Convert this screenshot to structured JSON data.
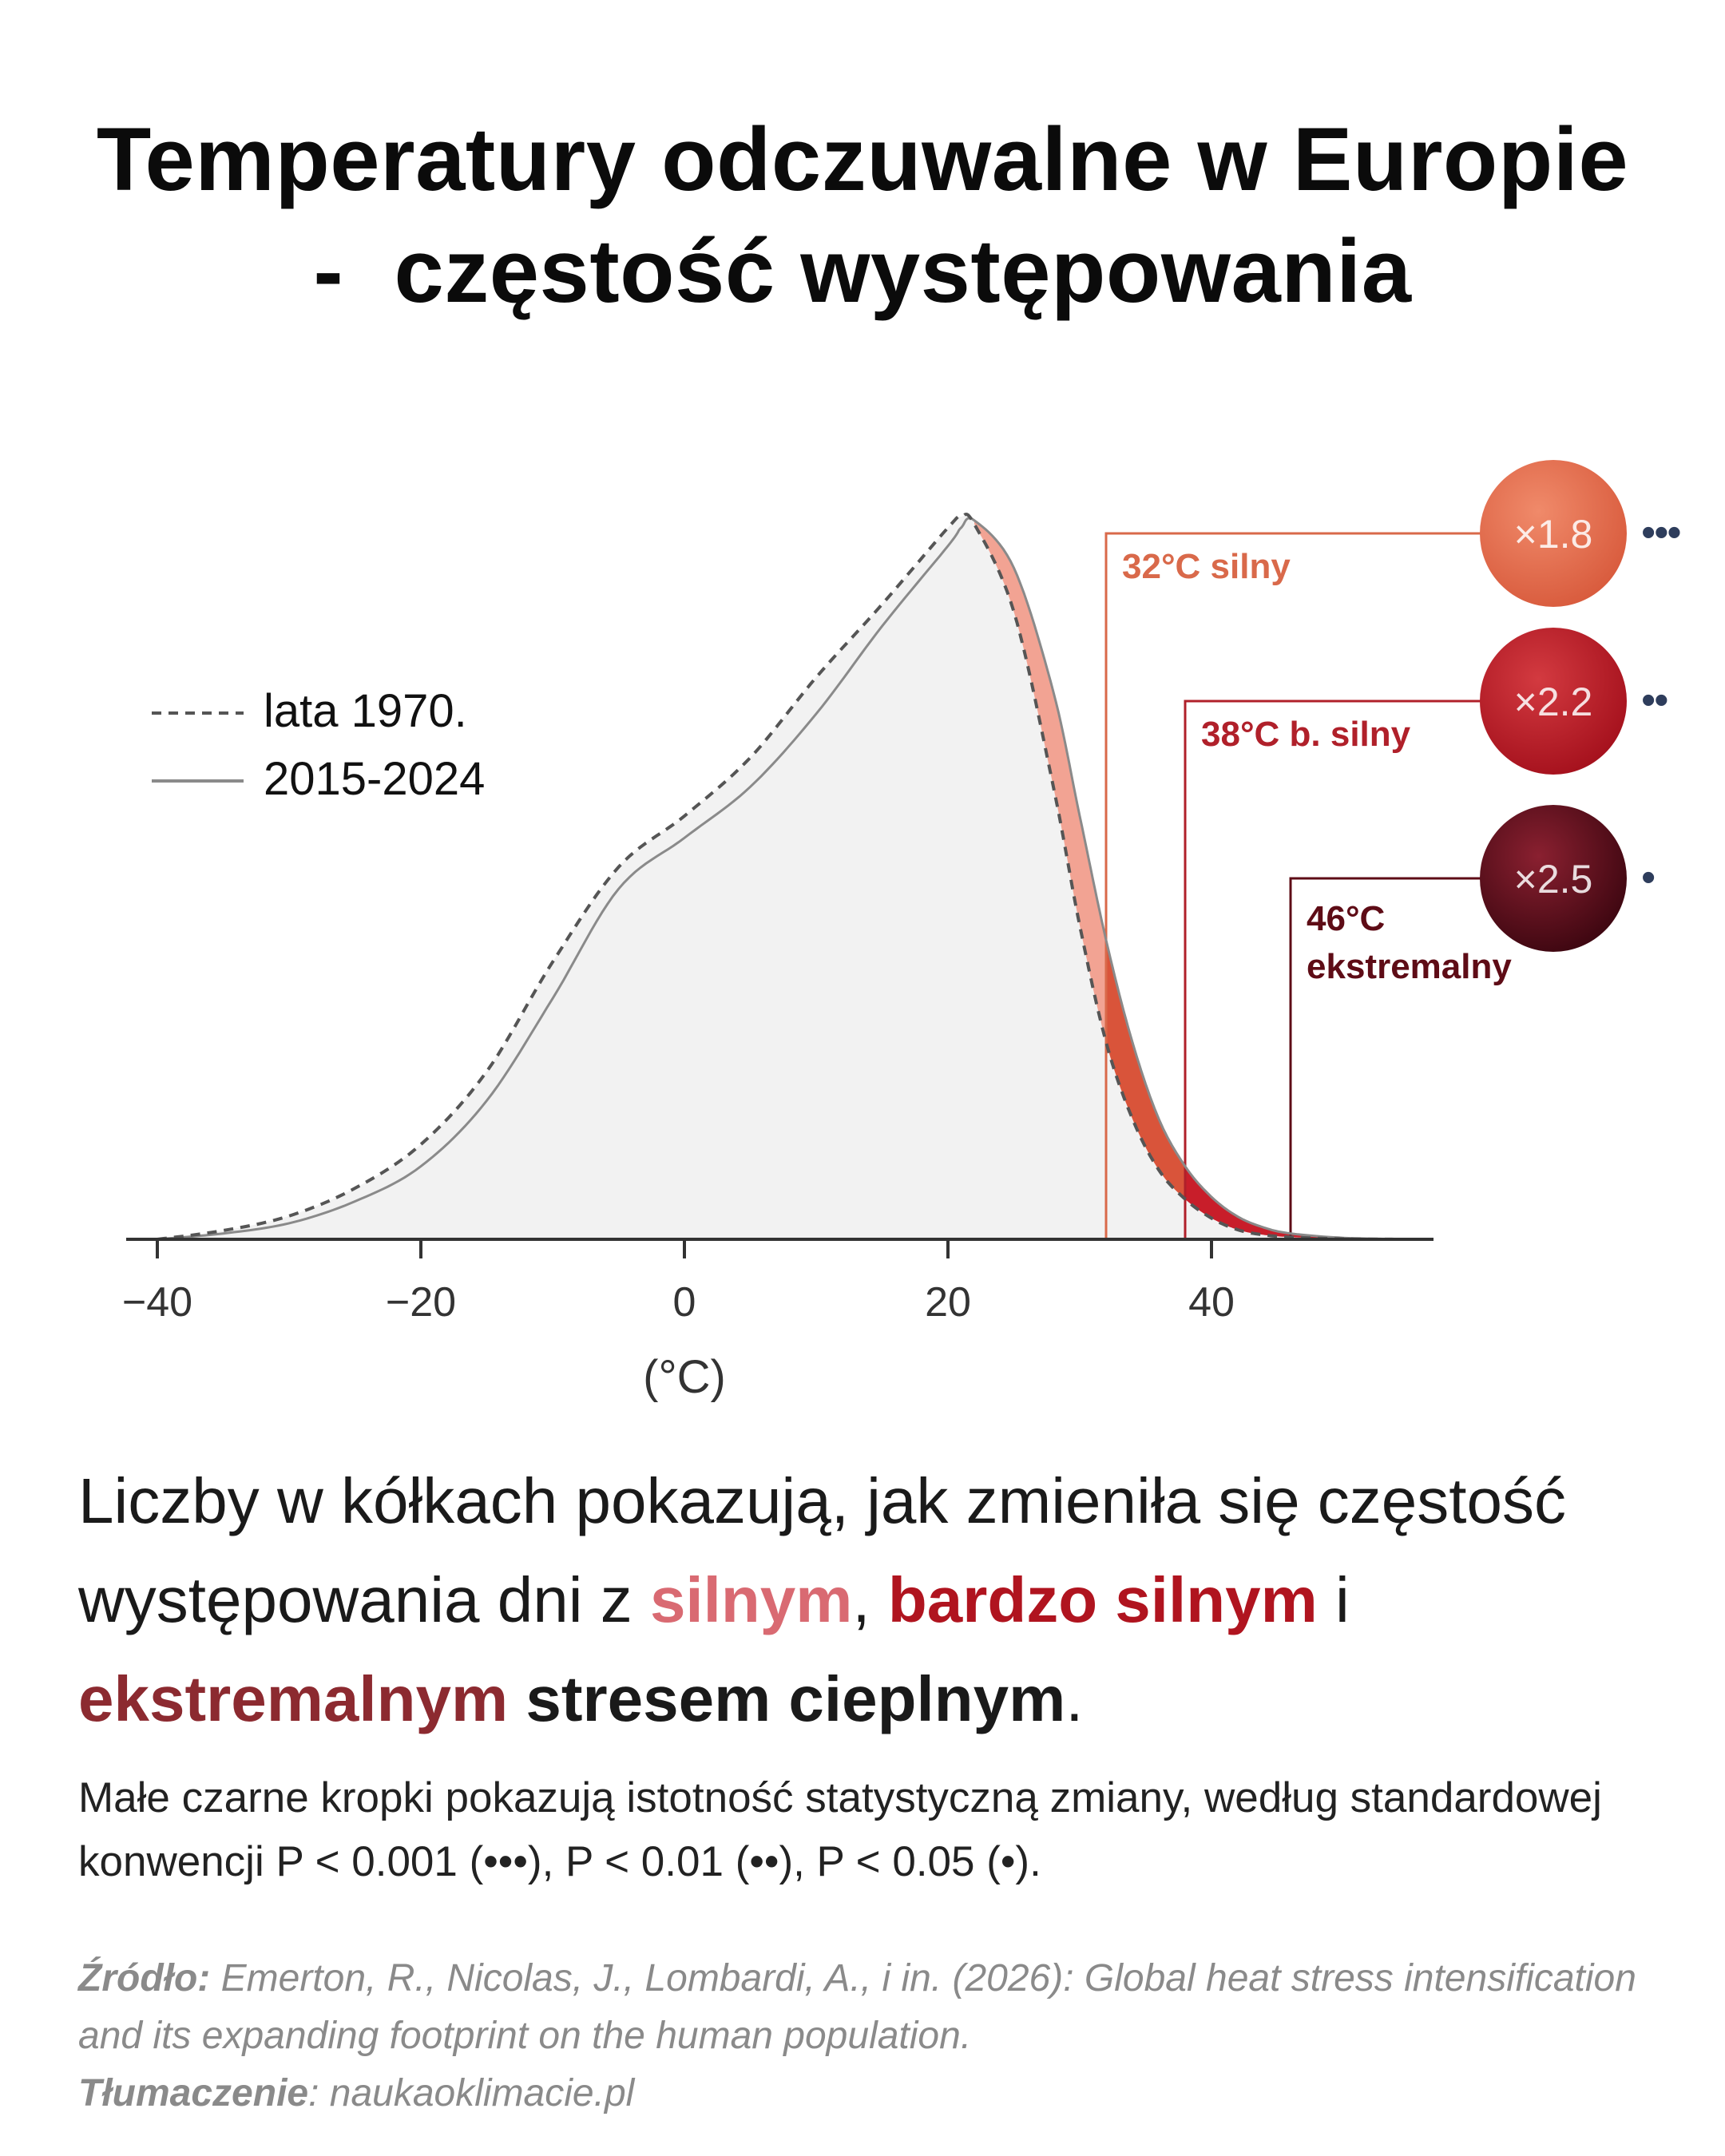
{
  "title": {
    "line1": "Temperatury odczuwalne w Europie",
    "line2": "-  częstość występowania"
  },
  "chart_data": {
    "type": "area",
    "xlabel": "(°C)",
    "xlim": [
      -43,
      57
    ],
    "ylim": [
      0,
      1.0
    ],
    "xticks": [
      -40,
      -20,
      0,
      20,
      40
    ],
    "xtick_labels": [
      "−40",
      "−20",
      "0",
      "20",
      "40"
    ],
    "legend": {
      "placement": "top-left",
      "entries": [
        {
          "label": "lata 1970.",
          "style": "dashed"
        },
        {
          "label": "2015-2024",
          "style": "solid"
        }
      ]
    },
    "series": [
      {
        "name": "lata 1970.",
        "style": "dashed",
        "x": [
          -40,
          -35,
          -30,
          -25,
          -20,
          -15,
          -10,
          -5,
          0,
          5,
          10,
          15,
          20,
          21,
          22,
          25,
          28,
          30,
          32,
          34,
          36,
          38,
          40,
          42,
          44,
          46,
          50,
          55
        ],
        "y": [
          0.0,
          0.012,
          0.032,
          0.07,
          0.13,
          0.23,
          0.38,
          0.51,
          0.58,
          0.66,
          0.77,
          0.87,
          0.975,
          0.99,
          0.98,
          0.86,
          0.62,
          0.43,
          0.27,
          0.165,
          0.095,
          0.055,
          0.029,
          0.013,
          0.006,
          0.003,
          0.0005,
          0.0
        ]
      },
      {
        "name": "2015-2024",
        "style": "solid",
        "x": [
          -40,
          -35,
          -30,
          -25,
          -20,
          -15,
          -10,
          -5,
          0,
          5,
          10,
          15,
          20,
          21,
          22,
          25,
          28,
          30,
          32,
          34,
          36,
          38,
          40,
          42,
          44,
          46,
          50,
          55
        ],
        "y": [
          0.0,
          0.008,
          0.022,
          0.052,
          0.1,
          0.19,
          0.33,
          0.48,
          0.55,
          0.62,
          0.72,
          0.84,
          0.95,
          0.975,
          0.985,
          0.92,
          0.75,
          0.58,
          0.41,
          0.27,
          0.165,
          0.1,
          0.058,
          0.031,
          0.016,
          0.008,
          0.002,
          0.0
        ]
      }
    ],
    "thresholds": [
      {
        "x": 32,
        "label": "32°C silny",
        "factor": "×1.8",
        "dots": "•••",
        "color": "#d9694a",
        "fill": "#f2a393"
      },
      {
        "x": 38,
        "label": "38°C b. silny",
        "factor": "×2.2",
        "dots": "••",
        "color": "#b0202a",
        "fill": "#c81e2a"
      },
      {
        "x": 46,
        "label_line1": "46°C",
        "label_line2": "ekstremalny",
        "factor": "×2.5",
        "dots": "•",
        "color": "#5e0c16",
        "fill": "#6b0e1a"
      }
    ]
  },
  "caption": {
    "part1": "Liczby w kółkach pokazują, jak zmieniła się częstość występowania dni z ",
    "w1": "silnym",
    "sep1": ", ",
    "w2": "bardzo silnym",
    "sep2": " i ",
    "w3": "ekstremalnym",
    "sep3": " ",
    "w4": "stresem cieplnym",
    "end": ".",
    "colors": {
      "silny": "#d96a72",
      "bardzo": "#b0141f",
      "ekstr": "#8c2a30"
    }
  },
  "note": "Małe czarne kropki pokazują istotność statystyczną zmiany, według standardowej konwencji P < 0.001 (•••), P < 0.01 (••), P < 0.05 (•).",
  "source": {
    "label": "Źródło:",
    "text": " Emerton, R., Nicolas, J., Lombardi, A., i in. (2026): Global heat stress intensification and its expanding footprint on the human population.",
    "translation_label": "Tłumaczenie",
    "translation_text": ": naukaoklimacie.pl"
  }
}
